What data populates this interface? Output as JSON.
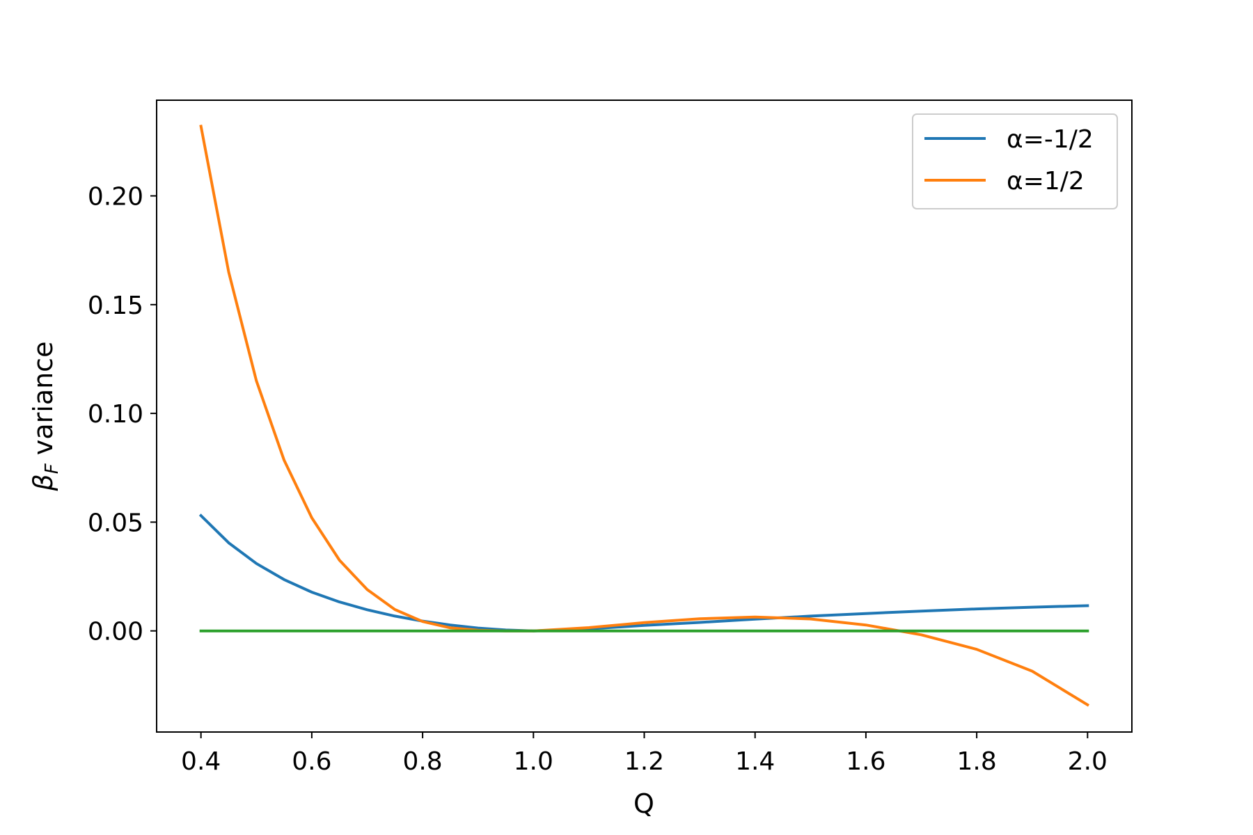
{
  "chart_data": {
    "type": "line",
    "xlabel": "Q",
    "ylabel": {
      "base": "β",
      "sub": "F",
      "rest": " variance"
    },
    "xlim": [
      0.32,
      2.08
    ],
    "ylim": [
      -0.0465,
      0.244
    ],
    "xticks": [
      "0.4",
      "0.6",
      "0.8",
      "1.0",
      "1.2",
      "1.4",
      "1.6",
      "1.8",
      "2.0"
    ],
    "yticks": [
      "0.00",
      "0.05",
      "0.10",
      "0.15",
      "0.20"
    ],
    "legend_position": "upper right",
    "grid": false,
    "series": [
      {
        "name": "α=-1/2",
        "color": "#1f77b4",
        "x": [
          0.4,
          0.45,
          0.5,
          0.55,
          0.6,
          0.65,
          0.7,
          0.75,
          0.8,
          0.85,
          0.9,
          0.95,
          1.0,
          1.1,
          1.2,
          1.3,
          1.4,
          1.5,
          1.6,
          1.7,
          1.8,
          1.9,
          2.0
        ],
        "y": [
          0.053,
          0.0405,
          0.031,
          0.0236,
          0.0178,
          0.0133,
          0.0097,
          0.0068,
          0.0045,
          0.0027,
          0.0013,
          0.0004,
          0.0,
          0.0009,
          0.0025,
          0.0039,
          0.0054,
          0.0068,
          0.008,
          0.0091,
          0.0101,
          0.0109,
          0.0116
        ]
      },
      {
        "name": "α=1/2",
        "color": "#ff7f0e",
        "x": [
          0.4,
          0.45,
          0.5,
          0.55,
          0.6,
          0.65,
          0.7,
          0.75,
          0.8,
          0.85,
          0.9,
          0.95,
          1.0,
          1.1,
          1.2,
          1.3,
          1.4,
          1.5,
          1.6,
          1.7,
          1.8,
          1.9,
          2.0
        ],
        "y": [
          0.232,
          0.165,
          0.115,
          0.0785,
          0.052,
          0.0325,
          0.019,
          0.0098,
          0.0043,
          0.0014,
          0.0003,
          0.0,
          0.0,
          0.0015,
          0.0038,
          0.0056,
          0.0064,
          0.0055,
          0.0027,
          -0.0018,
          -0.0085,
          -0.0185,
          -0.034
        ]
      },
      {
        "name": "",
        "color": "#2ca02c",
        "x": [
          0.4,
          2.0
        ],
        "y": [
          0.0,
          0.0
        ]
      }
    ]
  }
}
